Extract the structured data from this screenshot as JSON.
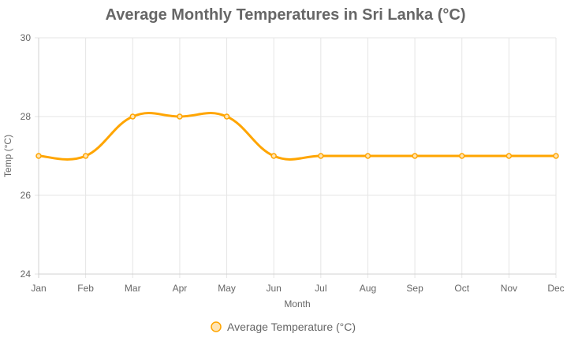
{
  "chart_data": {
    "type": "line",
    "title": "Average Monthly Temperatures in Sri Lanka (°C)",
    "xlabel": "Month",
    "ylabel": "Temp (°C)",
    "categories": [
      "Jan",
      "Feb",
      "Mar",
      "Apr",
      "May",
      "Jun",
      "Jul",
      "Aug",
      "Sep",
      "Oct",
      "Nov",
      "Dec"
    ],
    "series": [
      {
        "name": "Average Temperature (°C)",
        "values": [
          27,
          27,
          28,
          28,
          28,
          27,
          27,
          27,
          27,
          27,
          27,
          27
        ],
        "color": "#FFA500",
        "point_fill": "#FFE4B3"
      }
    ],
    "ylim": [
      24,
      30
    ],
    "yticks": [
      24,
      26,
      28,
      30
    ],
    "grid": true,
    "legend_position": "bottom",
    "smooth": true
  }
}
